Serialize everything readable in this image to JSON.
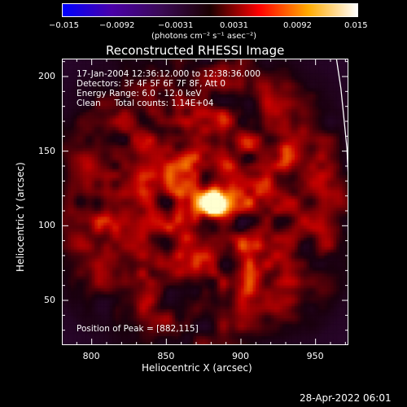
{
  "colorbar": {
    "tick_labels": [
      "−0.015",
      "−0.0092",
      "−0.0031",
      "0.0031",
      "0.0092",
      "0.015"
    ],
    "unit_label": "(photons cm⁻² s⁻¹ asec⁻²)",
    "colors": [
      "#0000ff",
      "#4a00a8",
      "#3a0a55",
      "#1a0000",
      "#ff0000",
      "#ffaa00",
      "#ffffff"
    ]
  },
  "chart_data": {
    "type": "heatmap",
    "title": "Reconstructed RHESSI Image",
    "xlabel": "Heliocentric X (arcsec)",
    "ylabel": "Heliocentric Y (arcsec)",
    "xlim": [
      780,
      972
    ],
    "ylim": [
      20,
      212
    ],
    "xticks": [
      800,
      850,
      900,
      950
    ],
    "yticks": [
      50,
      100,
      150,
      200
    ],
    "xtick_labels": [
      "800",
      "850",
      "900",
      "950"
    ],
    "ytick_labels": [
      "50",
      "100",
      "150",
      "200"
    ],
    "peak": [
      882,
      115
    ],
    "limb_curve": [
      [
        964,
        212
      ],
      [
        967,
        192
      ],
      [
        969,
        172
      ],
      [
        971,
        152
      ],
      [
        972,
        132
      ],
      [
        973,
        112
      ],
      [
        973,
        98
      ]
    ],
    "info_lines": [
      "17-Jan-2004 12:36:12.000 to 12:38:36.000",
      "Detectors: 3F 4F 5F 6F 7F 8F, Att 0",
      "Energy Range: 6.0 - 12.0 keV",
      "Clean     Total counts: 1.14E+04"
    ],
    "peak_label": "Position of Peak = [882,115]"
  },
  "footer": {
    "date": "28-Apr-2022 06:01"
  }
}
